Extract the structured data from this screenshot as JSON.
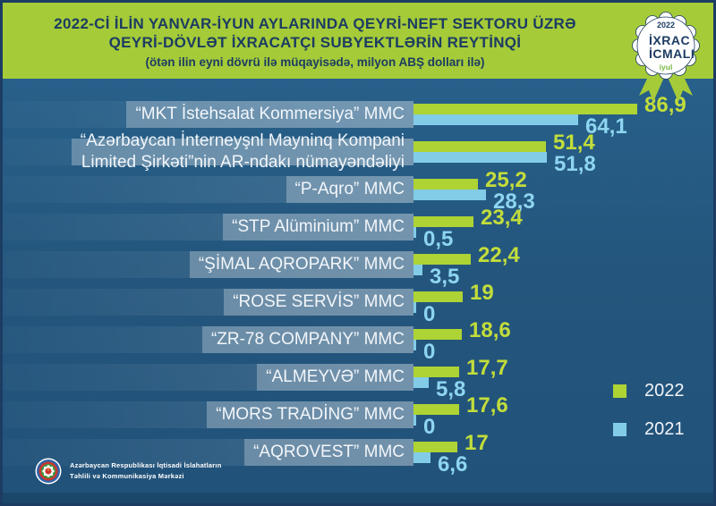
{
  "header": {
    "title_line1": "2022-Cİ İLİN YANVAR-İYUN AYLARINDA QEYRİ-NEFT SEKTORU ÜZRƏ",
    "title_line2": "QEYRİ-DÖVLƏT İXRACATÇI SUBYEKTLƏRİN REYTİNQİ",
    "subtitle": "(ötən ilin eyni dövrü ilə müqayisədə, milyon ABŞ dolları ilə)"
  },
  "badge": {
    "year": "2022",
    "line1": "İXRAC",
    "line2": "İCMALI",
    "month": "iyul"
  },
  "chart_data": {
    "type": "bar",
    "orientation": "horizontal",
    "title": "2022-ci ilin yanvar-iyun aylarında qeyri-neft sektoru üzrə qeyri-dövlət ixracatçı subyektlərin reytinqi",
    "subtitle": "(ötən ilin eyni dövrü ilə müqayisədə, milyon ABŞ dolları ilə)",
    "unit": "milyon ABŞ dolları",
    "xlim": [
      0,
      86.9
    ],
    "grid": false,
    "legend_position": "right-bottom",
    "categories": [
      [
        "“MKT İstehsalat Kommersiya” MMC"
      ],
      [
        "“Azərbaycan İnterneyşnl Mayninq Kompani",
        "Limited Şirkəti”nin AR-ndakı nümayəndəliyi"
      ],
      [
        "“P-Aqro” MMC"
      ],
      [
        "“STP Alüminium” MMC"
      ],
      [
        "“ŞİMAL AQROPARK” MMC"
      ],
      [
        "“ROSE SERVİS” MMC"
      ],
      [
        "“ZR-78 COMPANY” MMC"
      ],
      [
        "“ALMEYVƏ” MMC"
      ],
      [
        "“MORS TRADİNG” MMC"
      ],
      [
        "“AQROVEST” MMC"
      ]
    ],
    "series": [
      {
        "name": "2022",
        "color": "#aed334",
        "label_color": "#c3dd3b",
        "values": [
          86.9,
          51.4,
          25.2,
          23.4,
          22.4,
          19,
          18.6,
          17.7,
          17.6,
          17
        ]
      },
      {
        "name": "2021",
        "color": "#82cce8",
        "label_color": "#8ed5f0",
        "values": [
          64.1,
          51.8,
          28.3,
          0.5,
          3.5,
          0,
          0,
          5.8,
          0,
          6.6
        ]
      }
    ],
    "value_labels": [
      [
        "86,9",
        "64,1"
      ],
      [
        "51,4",
        "51,8"
      ],
      [
        "25,2",
        "28,3"
      ],
      [
        "23,4",
        "0,5"
      ],
      [
        "22,4",
        "3,5"
      ],
      [
        "19",
        "0"
      ],
      [
        "18,6",
        "0"
      ],
      [
        "17,7",
        "5,8"
      ],
      [
        "17,6",
        "0"
      ],
      [
        "17",
        "6,6"
      ]
    ]
  },
  "legend": {
    "items": [
      {
        "label": "2022",
        "color": "#aed334"
      },
      {
        "label": "2021",
        "color": "#82cce8"
      }
    ]
  },
  "footer": {
    "org_line1": "Azərbaycan Respublikası İqtisadi İslahatların",
    "org_line2": "Təhlili və Kommunikasiya Mərkəzi"
  },
  "colors": {
    "background": "#24567d",
    "header_band": "#a5cb38",
    "navy": "#1c3c62",
    "bar_2022": "#aed334",
    "bar_2021": "#82cce8"
  }
}
